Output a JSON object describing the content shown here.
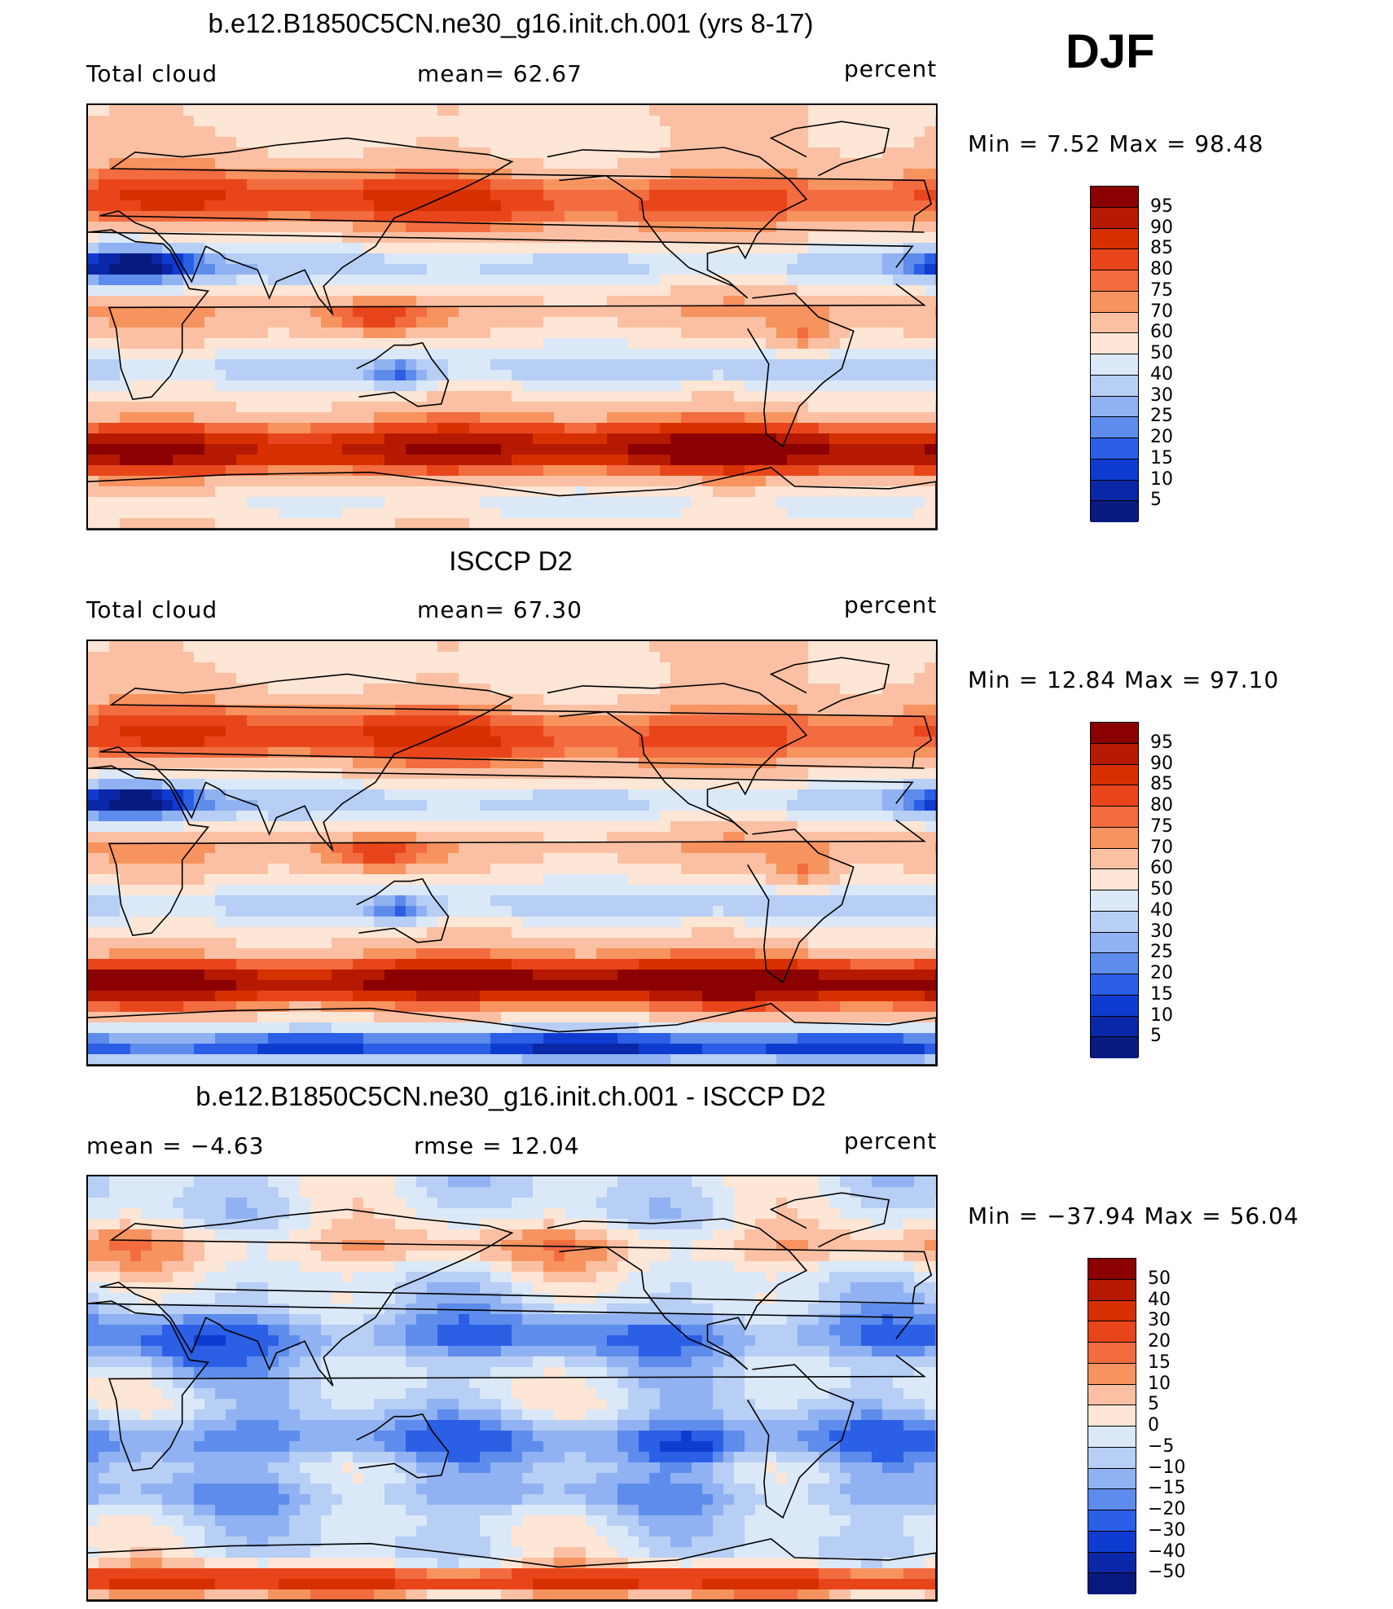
{
  "season": "DJF",
  "panels": [
    {
      "title": "b.e12.B1850C5CN.ne30_g16.init.ch.001 (yrs 8-17)",
      "left_label": "Total cloud",
      "mid_label": "mean=   62.67",
      "right_label": "percent",
      "minmax": "Min =    7.52 Max =   98.48",
      "colorbar_levels": [
        "95",
        "90",
        "85",
        "80",
        "75",
        "70",
        "60",
        "50",
        "40",
        "30",
        "25",
        "20",
        "15",
        "10",
        "5"
      ]
    },
    {
      "title": "ISCCP D2",
      "left_label": "Total cloud",
      "mid_label": "mean=   67.30",
      "right_label": "percent",
      "minmax": "Min =   12.84 Max =   97.10",
      "colorbar_levels": [
        "95",
        "90",
        "85",
        "80",
        "75",
        "70",
        "60",
        "50",
        "40",
        "30",
        "25",
        "20",
        "15",
        "10",
        "5"
      ]
    },
    {
      "title": "b.e12.B1850C5CN.ne30_g16.init.ch.001 - ISCCP D2",
      "left_label": "mean =   −4.63",
      "mid_label": "rmse =   12.04",
      "right_label": "percent",
      "minmax": "Min = −37.94 Max =   56.04",
      "colorbar_levels": [
        "50",
        "40",
        "30",
        "20",
        "15",
        "10",
        "5",
        "0",
        "−5",
        "−10",
        "−15",
        "−20",
        "−30",
        "−40",
        "−50"
      ]
    }
  ],
  "colorbar_colors": [
    "#8b0000",
    "#b51a00",
    "#d73000",
    "#e8461a",
    "#f26c3f",
    "#f7935f",
    "#fbc0a3",
    "#fde6d6",
    "#dbe8f8",
    "#b7cef5",
    "#90b2f2",
    "#5e8ced",
    "#2b5fe5",
    "#0f3cd0",
    "#0a27a8",
    "#081a80"
  ],
  "chart_data": [
    {
      "type": "heatmap",
      "title": "b.e12.B1850C5CN.ne30_g16.init.ch.001 (yrs 8-17)",
      "variable": "Total cloud",
      "units": "percent",
      "mean": 62.67,
      "min": 7.52,
      "max": 98.48,
      "levels": [
        5,
        10,
        15,
        20,
        25,
        30,
        40,
        50,
        60,
        70,
        75,
        80,
        85,
        90,
        95
      ]
    },
    {
      "type": "heatmap",
      "title": "ISCCP D2",
      "variable": "Total cloud",
      "units": "percent",
      "mean": 67.3,
      "min": 12.84,
      "max": 97.1,
      "levels": [
        5,
        10,
        15,
        20,
        25,
        30,
        40,
        50,
        60,
        70,
        75,
        80,
        85,
        90,
        95
      ]
    },
    {
      "type": "heatmap",
      "title": "b.e12.B1850C5CN.ne30_g16.init.ch.001 - ISCCP D2",
      "units": "percent",
      "mean": -4.63,
      "rmse": 12.04,
      "min": -37.94,
      "max": 56.04,
      "levels": [
        -50,
        -40,
        -30,
        -20,
        -15,
        -10,
        -5,
        0,
        5,
        10,
        15,
        20,
        30,
        40,
        50
      ]
    }
  ]
}
